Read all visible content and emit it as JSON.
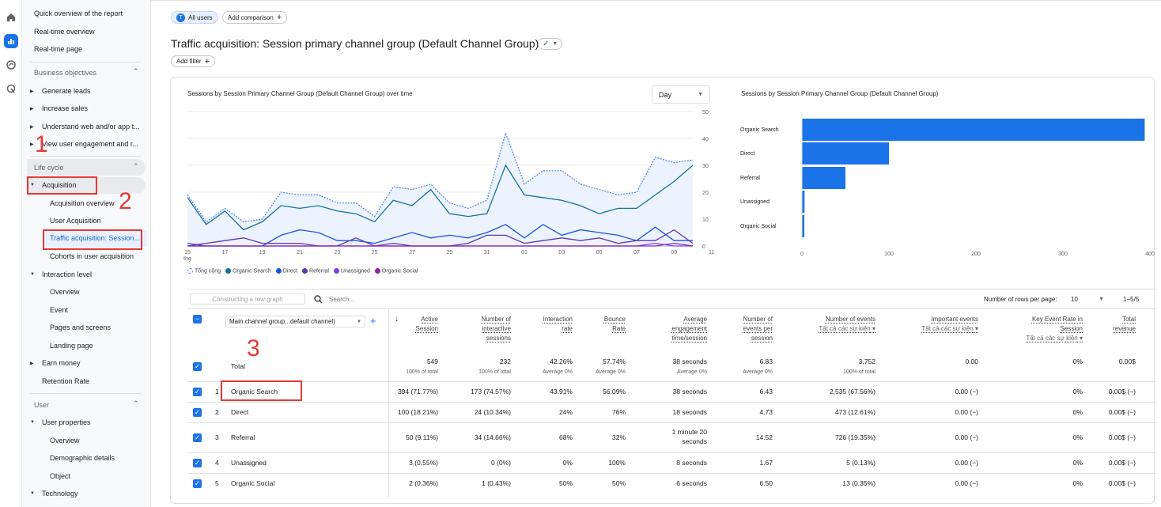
{
  "sidebar": {
    "top_items": [
      "Quick overview of the report",
      "Real-time overview",
      "Real-time page"
    ],
    "business": {
      "header": "Business objectives",
      "items": [
        "Generate leads",
        "Increase sales",
        "Understand web and/or app t...",
        "View user engagement and r..."
      ]
    },
    "lifecycle": {
      "header": "Life cycle",
      "acquisition": "Acquisition",
      "acq_items": [
        "Acquisition overview",
        "User Acquisition",
        "Traffic acquisition: Session...",
        "Cohorts in user acquisition"
      ],
      "interaction": "Interaction level",
      "int_items": [
        "Overview",
        "Event",
        "Pages and screens",
        "Landing page"
      ],
      "earn": "Earn money",
      "retention": "Retention Rate"
    },
    "user": {
      "header": "User",
      "props": "User properties",
      "prop_items": [
        "Overview",
        "Demographic details",
        "Object"
      ],
      "tech": "Technology"
    }
  },
  "annotations": {
    "n1": "1",
    "n2": "2",
    "n3": "3"
  },
  "header": {
    "segment_badge": "T",
    "segment": "All users",
    "add_comparison": "Add comparison",
    "title": "Traffic acquisition: Session primary channel group (Default Channel Group)",
    "add_filter": "Add filter"
  },
  "line_chart": {
    "title": "Sessions by Session Primary Channel Group (Default Channel Group) over time",
    "granularity": "Day",
    "y_ticks": [
      "50",
      "40",
      "30",
      "20",
      "10",
      "0"
    ],
    "x_ticks": [
      "15",
      "17",
      "19",
      "21",
      "23",
      "25",
      "27",
      "29",
      "31",
      "01",
      "03",
      "05",
      "07",
      "09",
      "11"
    ],
    "x_sub": "thg",
    "legend": [
      "Tổng cộng",
      "Organic Search",
      "Direct",
      "Referral",
      "Unassigned",
      "Organic Social"
    ],
    "legend_colors": [
      "#4285f4",
      "#12739c",
      "#1a56db",
      "#5e35b1",
      "#7b3ff2",
      "#8e24aa"
    ]
  },
  "chart_data": [
    {
      "type": "line",
      "title": "Sessions by Session Primary Channel Group (Default Channel Group) over time",
      "ylim": [
        0,
        50
      ],
      "x": [
        "15",
        "16",
        "17",
        "18",
        "19",
        "20",
        "21",
        "22",
        "23",
        "24",
        "25",
        "26",
        "27",
        "28",
        "29",
        "30",
        "31",
        "01",
        "02",
        "03",
        "04",
        "05",
        "06",
        "07",
        "08",
        "09",
        "10",
        "11"
      ],
      "series": [
        {
          "name": "Tổng cộng",
          "values": [
            19,
            9,
            14,
            9,
            10,
            20,
            19,
            19,
            16,
            16,
            11,
            22,
            21,
            23,
            16,
            14,
            17,
            42,
            23,
            28,
            28,
            23,
            21,
            19,
            20,
            33,
            31,
            32
          ]
        },
        {
          "name": "Organic Search",
          "values": [
            18,
            8,
            13,
            6,
            9,
            15,
            14,
            15,
            13,
            12,
            9,
            17,
            15,
            21,
            12,
            11,
            12,
            30,
            19,
            18,
            17,
            15,
            12,
            14,
            14,
            19,
            24,
            30
          ]
        },
        {
          "name": "Direct",
          "values": [
            1,
            0,
            0,
            0,
            0,
            4,
            6,
            5,
            2,
            2,
            1,
            3,
            5,
            3,
            4,
            3,
            5,
            8,
            3,
            8,
            4,
            6,
            5,
            4,
            2,
            7,
            2,
            2
          ]
        },
        {
          "name": "Referral",
          "values": [
            0,
            1,
            2,
            3,
            1,
            1,
            1,
            0,
            0,
            3,
            0,
            1,
            0,
            0,
            0,
            1,
            4,
            4,
            1,
            2,
            3,
            2,
            3,
            1,
            2,
            2,
            6,
            1
          ]
        },
        {
          "name": "Unassigned",
          "values": [
            0,
            0,
            0,
            0,
            0,
            0,
            0,
            0,
            0,
            0,
            0,
            0,
            0,
            0,
            0,
            0,
            0,
            0,
            0,
            0,
            0,
            0,
            0,
            0,
            0,
            1,
            0,
            0
          ]
        },
        {
          "name": "Organic Social",
          "values": [
            0,
            0,
            0,
            0,
            0,
            0,
            0,
            0,
            0,
            0,
            0,
            0,
            0,
            0,
            0,
            0,
            0,
            0,
            0,
            0,
            0,
            0,
            0,
            0,
            0,
            0,
            1,
            0
          ]
        }
      ]
    },
    {
      "type": "bar",
      "title": "Sessions by Session Primary Channel Group (Default Channel Group)",
      "orientation": "horizontal",
      "categories": [
        "Organic Search",
        "Direct",
        "Referral",
        "Unassigned",
        "Organic Social"
      ],
      "values": [
        394,
        100,
        50,
        3,
        2
      ],
      "x_ticks": [
        "0",
        "100",
        "200",
        "300",
        "400"
      ],
      "xlim": [
        0,
        400
      ]
    }
  ],
  "bar_chart": {
    "title": "Sessions by Session Primary Channel Group (Default Channel Group)",
    "categories": [
      "Organic Search",
      "Direct",
      "Referral",
      "Unassigned",
      "Organic Social"
    ],
    "x_ticks": [
      "0",
      "100",
      "200",
      "300",
      "400"
    ]
  },
  "table": {
    "row_graph_btn": "Constructing a row graph",
    "search_placeholder": "Search...",
    "rows_per_page_label": "Number of rows per page:",
    "rows_per_page": "10",
    "pagination": "1−5/5",
    "dim_select": "Main channel group...default channel)",
    "headers": [
      [
        "Active",
        "Session"
      ],
      [
        "Number of",
        "interactive",
        "sessions"
      ],
      [
        "Interaction",
        "rate"
      ],
      [
        "Bounce",
        "Rate"
      ],
      [
        "Average",
        "engagement",
        "time/session"
      ],
      [
        "Number of",
        "events per",
        "session"
      ],
      [
        "Number of events"
      ],
      [
        "Important events"
      ],
      [
        "Key Event Rate in",
        "Session"
      ],
      [
        "Total",
        "revenue"
      ]
    ],
    "event_filter": "Tất cả các sự kiện",
    "total_label": "Total",
    "totals": [
      "549",
      "232",
      "42.26%",
      "57.74%",
      "38 seconds",
      "6.83",
      "3,752",
      "0.00",
      "0%",
      "0.00$"
    ],
    "totals_sub": [
      "100% of total",
      "100% of total",
      "Average 0%",
      "Average 0%",
      "Average 0%",
      "Average 0%",
      "100% of total",
      "",
      "",
      ""
    ],
    "rows": [
      {
        "idx": "1",
        "name": "Organic Search",
        "cells": [
          "394 (71.77%)",
          "173 (74.57%)",
          "43.91%",
          "56.09%",
          "38 seconds",
          "6.43",
          "2,535 (67.56%)",
          "0.00 (−)",
          "0%",
          "0.00$ (−)"
        ]
      },
      {
        "idx": "2",
        "name": "Direct",
        "cells": [
          "100 (18.21%)",
          "24 (10.34%)",
          "24%",
          "76%",
          "18 seconds",
          "4.73",
          "473 (12.61%)",
          "0.00 (−)",
          "0%",
          "0.00$ (−)"
        ]
      },
      {
        "idx": "3",
        "name": "Referral",
        "cells": [
          "50 (9.11%)",
          "34 (14.66%)",
          "68%",
          "32%",
          "1 minute 20 seconds",
          "14.52",
          "726 (19.35%)",
          "0.00 (−)",
          "0%",
          "0.00$ (−)"
        ]
      },
      {
        "idx": "4",
        "name": "Unassigned",
        "cells": [
          "3 (0.55%)",
          "0 (0%)",
          "0%",
          "100%",
          "8 seconds",
          "1.67",
          "5 (0.13%)",
          "0.00 (−)",
          "0%",
          "0.00$ (−)"
        ]
      },
      {
        "idx": "5",
        "name": "Organic Social",
        "cells": [
          "2 (0.36%)",
          "1 (0.43%)",
          "50%",
          "50%",
          "6 seconds",
          "6.50",
          "13 (0.35%)",
          "0.00 (−)",
          "0%",
          "0.00$ (−)"
        ]
      }
    ]
  }
}
